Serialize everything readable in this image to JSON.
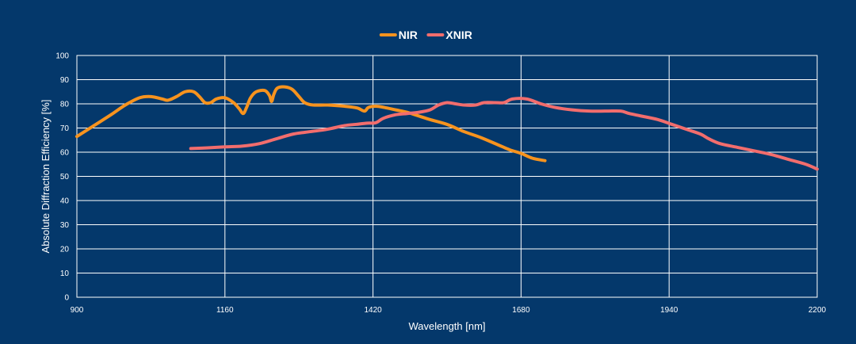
{
  "page": {
    "background": "#04386b",
    "grid_color": "#ffffff",
    "text_color": "#ffffff"
  },
  "chart_data": {
    "type": "line",
    "title": "",
    "xlabel": "Wavelength [nm]",
    "ylabel": "Absolute Diffraction Efficiency [%]",
    "xlim": [
      900,
      2200
    ],
    "ylim": [
      0,
      100
    ],
    "x_ticks": [
      900,
      1160,
      1420,
      1680,
      1940,
      2200
    ],
    "y_ticks": [
      0,
      10,
      20,
      30,
      40,
      50,
      60,
      70,
      80,
      90,
      100
    ],
    "grid": true,
    "legend_position": "top-center",
    "series": [
      {
        "name": "NIR",
        "color": "#f7931e",
        "points": [
          [
            900,
            66.5
          ],
          [
            930,
            71
          ],
          [
            960,
            75.5
          ],
          [
            985,
            79.5
          ],
          [
            1010,
            82.5
          ],
          [
            1030,
            83
          ],
          [
            1050,
            82
          ],
          [
            1060,
            81.5
          ],
          [
            1075,
            83
          ],
          [
            1090,
            85
          ],
          [
            1105,
            85
          ],
          [
            1115,
            83
          ],
          [
            1125,
            80.5
          ],
          [
            1135,
            80.5
          ],
          [
            1145,
            82
          ],
          [
            1160,
            82.5
          ],
          [
            1175,
            80.5
          ],
          [
            1185,
            78
          ],
          [
            1192,
            76
          ],
          [
            1198,
            78.5
          ],
          [
            1205,
            82.5
          ],
          [
            1215,
            85
          ],
          [
            1230,
            85.5
          ],
          [
            1238,
            83.5
          ],
          [
            1242,
            81
          ],
          [
            1246,
            84
          ],
          [
            1252,
            86.5
          ],
          [
            1265,
            87
          ],
          [
            1278,
            86
          ],
          [
            1290,
            83
          ],
          [
            1300,
            80.5
          ],
          [
            1315,
            79.5
          ],
          [
            1340,
            79.5
          ],
          [
            1370,
            79
          ],
          [
            1392,
            78.3
          ],
          [
            1405,
            77
          ],
          [
            1412,
            78.5
          ],
          [
            1425,
            79
          ],
          [
            1440,
            78.5
          ],
          [
            1460,
            77.5
          ],
          [
            1480,
            76.5
          ],
          [
            1500,
            75
          ],
          [
            1520,
            73.5
          ],
          [
            1550,
            71.5
          ],
          [
            1580,
            68.5
          ],
          [
            1610,
            66
          ],
          [
            1640,
            63
          ],
          [
            1660,
            61
          ],
          [
            1680,
            59.5
          ],
          [
            1700,
            57.5
          ],
          [
            1722,
            56.5
          ]
        ]
      },
      {
        "name": "XNIR",
        "color": "#f26d6d",
        "points": [
          [
            1100,
            61.5
          ],
          [
            1130,
            61.8
          ],
          [
            1160,
            62.2
          ],
          [
            1190,
            62.5
          ],
          [
            1220,
            63.5
          ],
          [
            1250,
            65.5
          ],
          [
            1280,
            67.5
          ],
          [
            1310,
            68.5
          ],
          [
            1340,
            69.5
          ],
          [
            1370,
            71
          ],
          [
            1390,
            71.5
          ],
          [
            1410,
            72
          ],
          [
            1425,
            72.2
          ],
          [
            1438,
            74
          ],
          [
            1460,
            75.5
          ],
          [
            1480,
            76
          ],
          [
            1500,
            76.5
          ],
          [
            1520,
            77.5
          ],
          [
            1535,
            79.5
          ],
          [
            1550,
            80.5
          ],
          [
            1565,
            80
          ],
          [
            1580,
            79.5
          ],
          [
            1600,
            79.5
          ],
          [
            1615,
            80.5
          ],
          [
            1635,
            80.5
          ],
          [
            1650,
            80.5
          ],
          [
            1665,
            82
          ],
          [
            1690,
            82
          ],
          [
            1715,
            80
          ],
          [
            1740,
            78.5
          ],
          [
            1770,
            77.5
          ],
          [
            1800,
            77
          ],
          [
            1830,
            77
          ],
          [
            1855,
            77
          ],
          [
            1870,
            76
          ],
          [
            1890,
            75
          ],
          [
            1920,
            73.5
          ],
          [
            1945,
            71.5
          ],
          [
            1970,
            69.5
          ],
          [
            1995,
            67.5
          ],
          [
            2010,
            65.5
          ],
          [
            2030,
            63.5
          ],
          [
            2060,
            62
          ],
          [
            2090,
            60.5
          ],
          [
            2120,
            59
          ],
          [
            2150,
            57
          ],
          [
            2180,
            55
          ],
          [
            2200,
            53
          ]
        ]
      }
    ]
  }
}
